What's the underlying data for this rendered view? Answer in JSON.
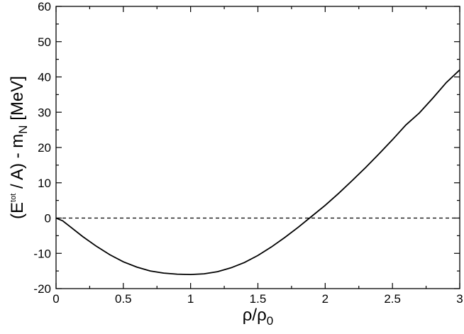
{
  "chart_data": {
    "type": "line",
    "title": "",
    "xlabel": {
      "base": "ρ/ρ",
      "sub": "0"
    },
    "ylabel": {
      "open": "(E",
      "sup": "tot",
      "mid": " / A) - m",
      "sub": "N",
      "unit": "  [MeV]"
    },
    "xlim": [
      0,
      3
    ],
    "ylim": [
      -20,
      60
    ],
    "x_ticks": [
      0,
      0.5,
      1,
      1.5,
      2,
      2.5,
      3
    ],
    "x_tick_labels": [
      "0",
      "0.5",
      "1",
      "1.5",
      "2",
      "2.5",
      "3"
    ],
    "y_ticks": [
      -20,
      -10,
      0,
      10,
      20,
      30,
      40,
      50,
      60
    ],
    "y_tick_labels": [
      "-20",
      "-10",
      "0",
      "10",
      "20",
      "30",
      "40",
      "50",
      "60"
    ],
    "grid": false,
    "series": [
      {
        "style": "solid",
        "color": "#000000",
        "x": [
          0,
          0.05,
          0.1,
          0.2,
          0.3,
          0.4,
          0.5,
          0.6,
          0.7,
          0.8,
          0.9,
          1.0,
          1.1,
          1.2,
          1.3,
          1.4,
          1.5,
          1.6,
          1.7,
          1.8,
          1.9,
          2.0,
          2.1,
          2.2,
          2.3,
          2.4,
          2.5,
          2.6,
          2.7,
          2.8,
          2.9,
          3.0
        ],
        "y": [
          0,
          -0.8,
          -2.3,
          -5.3,
          -8.0,
          -10.4,
          -12.4,
          -13.9,
          -15.0,
          -15.6,
          -15.9,
          -16.0,
          -15.8,
          -15.2,
          -14.1,
          -12.6,
          -10.6,
          -8.2,
          -5.5,
          -2.6,
          0.5,
          3.6,
          7.0,
          10.6,
          14.3,
          18.2,
          22.2,
          26.4,
          29.8,
          34.0,
          38.4,
          42.0
        ]
      },
      {
        "style": "dashed",
        "color": "#000000",
        "x": [
          0,
          3
        ],
        "y": [
          0,
          0
        ]
      }
    ]
  }
}
